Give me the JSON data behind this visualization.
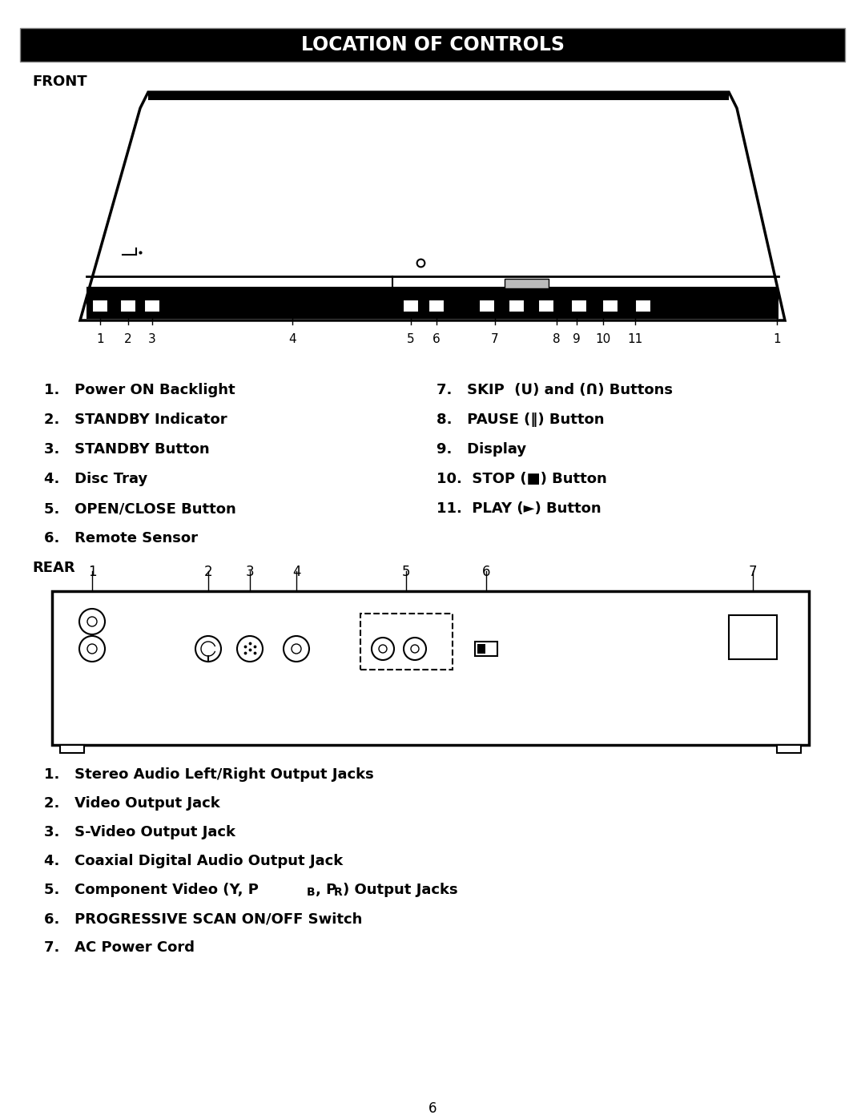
{
  "title": "LOCATION OF CONTROLS",
  "title_bg": "#000000",
  "title_color": "#ffffff",
  "title_fontsize": 16,
  "page_number": "6",
  "front_label": "FRONT",
  "rear_label": "REAR",
  "front_items_left": [
    "1.   Power ON Backlight",
    "2.   STANDBY Indicator",
    "3.   STANDBY Button",
    "4.   Disc Tray",
    "5.   OPEN/CLOSE Button",
    "6.   Remote Sensor"
  ],
  "front_items_right": [
    "7.   SKIP  (ᑌ) and (ᑎ) Buttons",
    "8.   PAUSE (‖) Button",
    "9.   Display",
    "10.  STOP (■) Button",
    "11.  PLAY (►) Button"
  ],
  "rear_items": [
    "1.   Stereo Audio Left/Right Output Jacks",
    "2.   Video Output Jack",
    "3.   S-Video Output Jack",
    "4.   Coaxial Digital Audio Output Jack",
    "5.   Component Video (Y, PB, PR) Output Jacks",
    "6.   PROGRESSIVE SCAN ON/OFF Switch",
    "7.   AC Power Cord"
  ],
  "bg_color": "#ffffff",
  "text_color": "#000000",
  "list_fontsize": 13,
  "label_fontsize": 13
}
